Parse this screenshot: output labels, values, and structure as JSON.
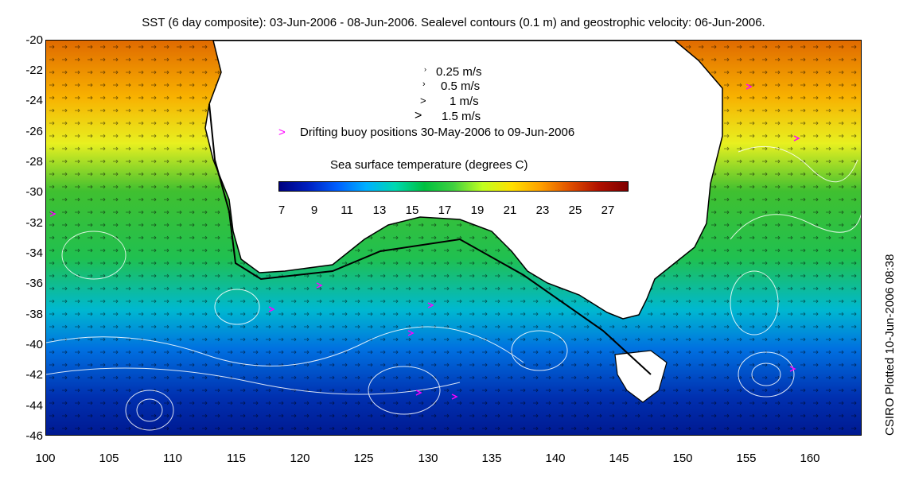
{
  "title": "SST (6 day composite): 03-Jun-2006 - 08-Jun-2006. Sealevel contours (0.1 m) and geostrophic velocity: 06-Jun-2006.",
  "credit": "CSIRO Plotted 10-Jun-2006 08:38",
  "map": {
    "lon_range": [
      100,
      164
    ],
    "lat_range": [
      -46,
      -20
    ],
    "x_ticks": [
      "100",
      "105",
      "110",
      "115",
      "120",
      "125",
      "130",
      "135",
      "140",
      "145",
      "150",
      "155",
      "160"
    ],
    "y_ticks": [
      "-20",
      "-22",
      "-24",
      "-26",
      "-28",
      "-30",
      "-32",
      "-34",
      "-36",
      "-38",
      "-40",
      "-42",
      "-44",
      "-46"
    ]
  },
  "legend": {
    "velocity_scale": [
      {
        "glyph": "›",
        "label": "0.25 m/s"
      },
      {
        "glyph": "›",
        "label": "0.5 m/s"
      },
      {
        "glyph": ">",
        "label": "1 m/s"
      },
      {
        "glyph": ">",
        "label": "1.5 m/s"
      }
    ],
    "buoy_glyph": ">",
    "buoy_label": "Drifting buoy positions 30-May-2006 to 09-Jun-2006",
    "buoy_color": "#ff00ff"
  },
  "colorbar": {
    "title": "Sea surface temperature (degrees C)",
    "ticks": [
      "7",
      "9",
      "11",
      "13",
      "15",
      "17",
      "19",
      "21",
      "23",
      "25",
      "27"
    ],
    "colors": [
      "#00007f",
      "#0020c0",
      "#0060ff",
      "#00b0ff",
      "#00d8b0",
      "#00c040",
      "#40d040",
      "#c0ff20",
      "#ffe000",
      "#ffa000",
      "#e05000",
      "#b01000",
      "#7f0000"
    ]
  }
}
